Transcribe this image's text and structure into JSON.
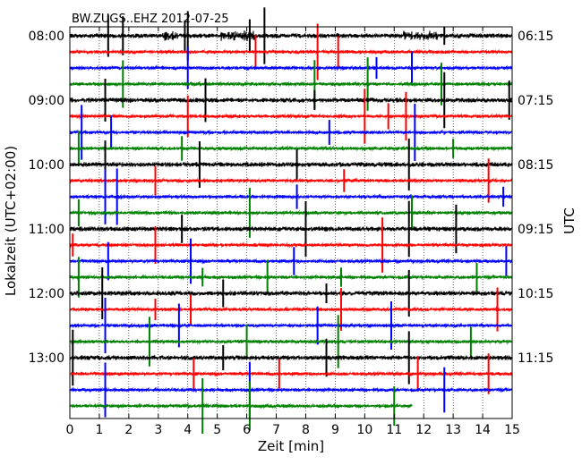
{
  "chart_data": {
    "type": "line",
    "title": "BW.ZUGS..EHZ 2012-07-25",
    "xlabel": "Zeit  [min]",
    "ylabel_left": "Lokalzeit (UTC+02:00)",
    "ylabel_right": "UTC",
    "xlim": [
      0,
      15
    ],
    "x_ticks": [
      0,
      1,
      2,
      3,
      4,
      5,
      6,
      7,
      8,
      9,
      10,
      11,
      12,
      13,
      14,
      15
    ],
    "x_tick_labels": [
      "0",
      "1",
      "2",
      "3",
      "4",
      "5",
      "6",
      "7",
      "8",
      "9",
      "10",
      "11",
      "12",
      "13",
      "14",
      "15"
    ],
    "left_tick_labels": [
      "08:00",
      "09:00",
      "10:00",
      "11:00",
      "12:00",
      "13:00"
    ],
    "right_tick_labels": [
      "06:15",
      "07:15",
      "08:15",
      "09:15",
      "10:15",
      "11:15"
    ],
    "row_minutes": 15,
    "first_row_local_time": "08:00",
    "row_count": 24,
    "last_row_end_minute": 11.6,
    "series_colors": [
      "#000000",
      "#ff0000",
      "#0000ff",
      "#008000"
    ],
    "grid": true,
    "spikes": [
      {
        "row": 0,
        "minutes": [
          1.3,
          1.8,
          3.9,
          4.0,
          6.1,
          6.6,
          12.7
        ]
      },
      {
        "row": 1,
        "minutes": [
          6.3,
          8.4,
          9.1
        ]
      },
      {
        "row": 2,
        "minutes": [
          4.0,
          10.4,
          11.6
        ]
      },
      {
        "row": 3,
        "minutes": [
          1.8,
          8.3,
          10.1,
          12.6
        ]
      },
      {
        "row": 4,
        "minutes": [
          1.2,
          4.6,
          8.3,
          12.7,
          14.9
        ]
      },
      {
        "row": 5,
        "minutes": [
          4.0,
          10.0,
          10.8,
          11.4
        ]
      },
      {
        "row": 6,
        "minutes": [
          0.4,
          1.4,
          8.8,
          11.7
        ]
      },
      {
        "row": 7,
        "minutes": [
          0.3,
          3.8,
          13.0
        ]
      },
      {
        "row": 8,
        "minutes": [
          1.2,
          4.4,
          7.7,
          11.5
        ]
      },
      {
        "row": 9,
        "minutes": [
          2.9,
          9.3,
          14.2
        ]
      },
      {
        "row": 10,
        "minutes": [
          1.2,
          1.6,
          7.7,
          14.7
        ]
      },
      {
        "row": 11,
        "minutes": [
          0.3,
          6.1,
          11.6
        ]
      },
      {
        "row": 12,
        "minutes": [
          3.8,
          8.0,
          11.5,
          13.1
        ]
      },
      {
        "row": 13,
        "minutes": [
          0.1,
          2.9,
          10.6
        ]
      },
      {
        "row": 14,
        "minutes": [
          1.3,
          4.1,
          7.6,
          14.8
        ]
      },
      {
        "row": 15,
        "minutes": [
          0.3,
          4.5,
          6.7,
          9.2,
          13.8
        ]
      },
      {
        "row": 16,
        "minutes": [
          1.1,
          5.2,
          8.7,
          11.5
        ]
      },
      {
        "row": 17,
        "minutes": [
          2.9,
          4.1,
          9.2,
          14.5
        ]
      },
      {
        "row": 18,
        "minutes": [
          1.2,
          3.7,
          8.4,
          10.9
        ]
      },
      {
        "row": 19,
        "minutes": [
          2.7,
          6.0,
          9.1,
          13.6
        ]
      },
      {
        "row": 20,
        "minutes": [
          0.1,
          5.2,
          8.7,
          11.5
        ]
      },
      {
        "row": 21,
        "minutes": [
          4.2,
          7.1,
          11.8,
          14.2
        ]
      },
      {
        "row": 22,
        "minutes": [
          1.2,
          6.1,
          12.7
        ]
      },
      {
        "row": 23,
        "minutes": [
          4.5,
          6.1,
          11.0
        ]
      }
    ]
  }
}
